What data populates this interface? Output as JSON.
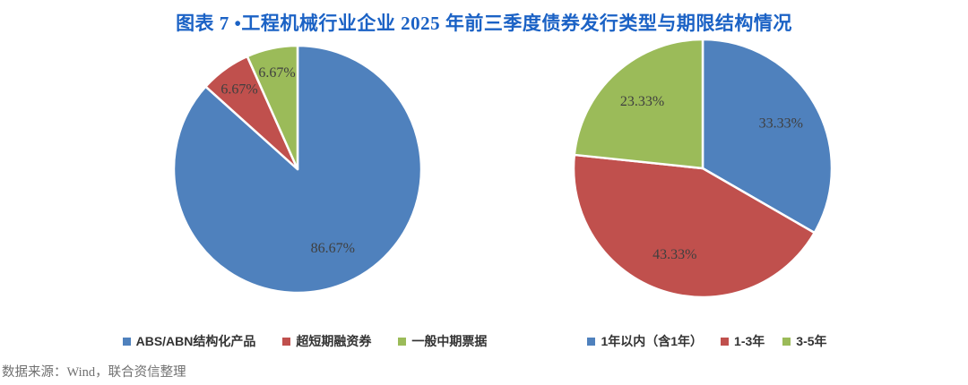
{
  "page": {
    "title": "图表 7 •工程机械行业企业 2025 年前三季度债券发行类型与期限结构情况",
    "source_note": "数据来源：Wind，联合资信整理"
  },
  "colors": {
    "title_blue": "#1B62C5",
    "series_blue": "#4F81BD",
    "series_red": "#C0504D",
    "series_green": "#9BBB59",
    "data_label": "#3F3F3F",
    "source_text": "#707070"
  },
  "chart_data": [
    {
      "type": "pie",
      "name": "bond-issuance-type-structure",
      "categories": [
        "ABS/ABN结构化产品",
        "超短期融资券",
        "一般中期票据"
      ],
      "values": [
        86.67,
        6.67,
        6.67
      ],
      "labels": [
        "86.67%",
        "6.67%",
        "6.67%"
      ],
      "colors": [
        "#4F81BD",
        "#C0504D",
        "#9BBB59"
      ],
      "start_angle": "12-oclock-clockwise",
      "slice_order_clockwise_from_top": [
        "ABS/ABN结构化产品",
        "超短期融资券",
        "一般中期票据"
      ],
      "legend_position": "bottom"
    },
    {
      "type": "pie",
      "name": "bond-maturity-structure",
      "categories": [
        "1年以内（含1年）",
        "1-3年",
        "3-5年"
      ],
      "values": [
        33.33,
        43.33,
        23.33
      ],
      "labels": [
        "33.33%",
        "43.33%",
        "23.33%"
      ],
      "colors": [
        "#4F81BD",
        "#C0504D",
        "#9BBB59"
      ],
      "start_angle": "12-oclock-clockwise",
      "slice_order_clockwise_from_top": [
        "1年以内（含1年）",
        "1-3年",
        "3-5年"
      ],
      "legend_position": "bottom"
    }
  ]
}
